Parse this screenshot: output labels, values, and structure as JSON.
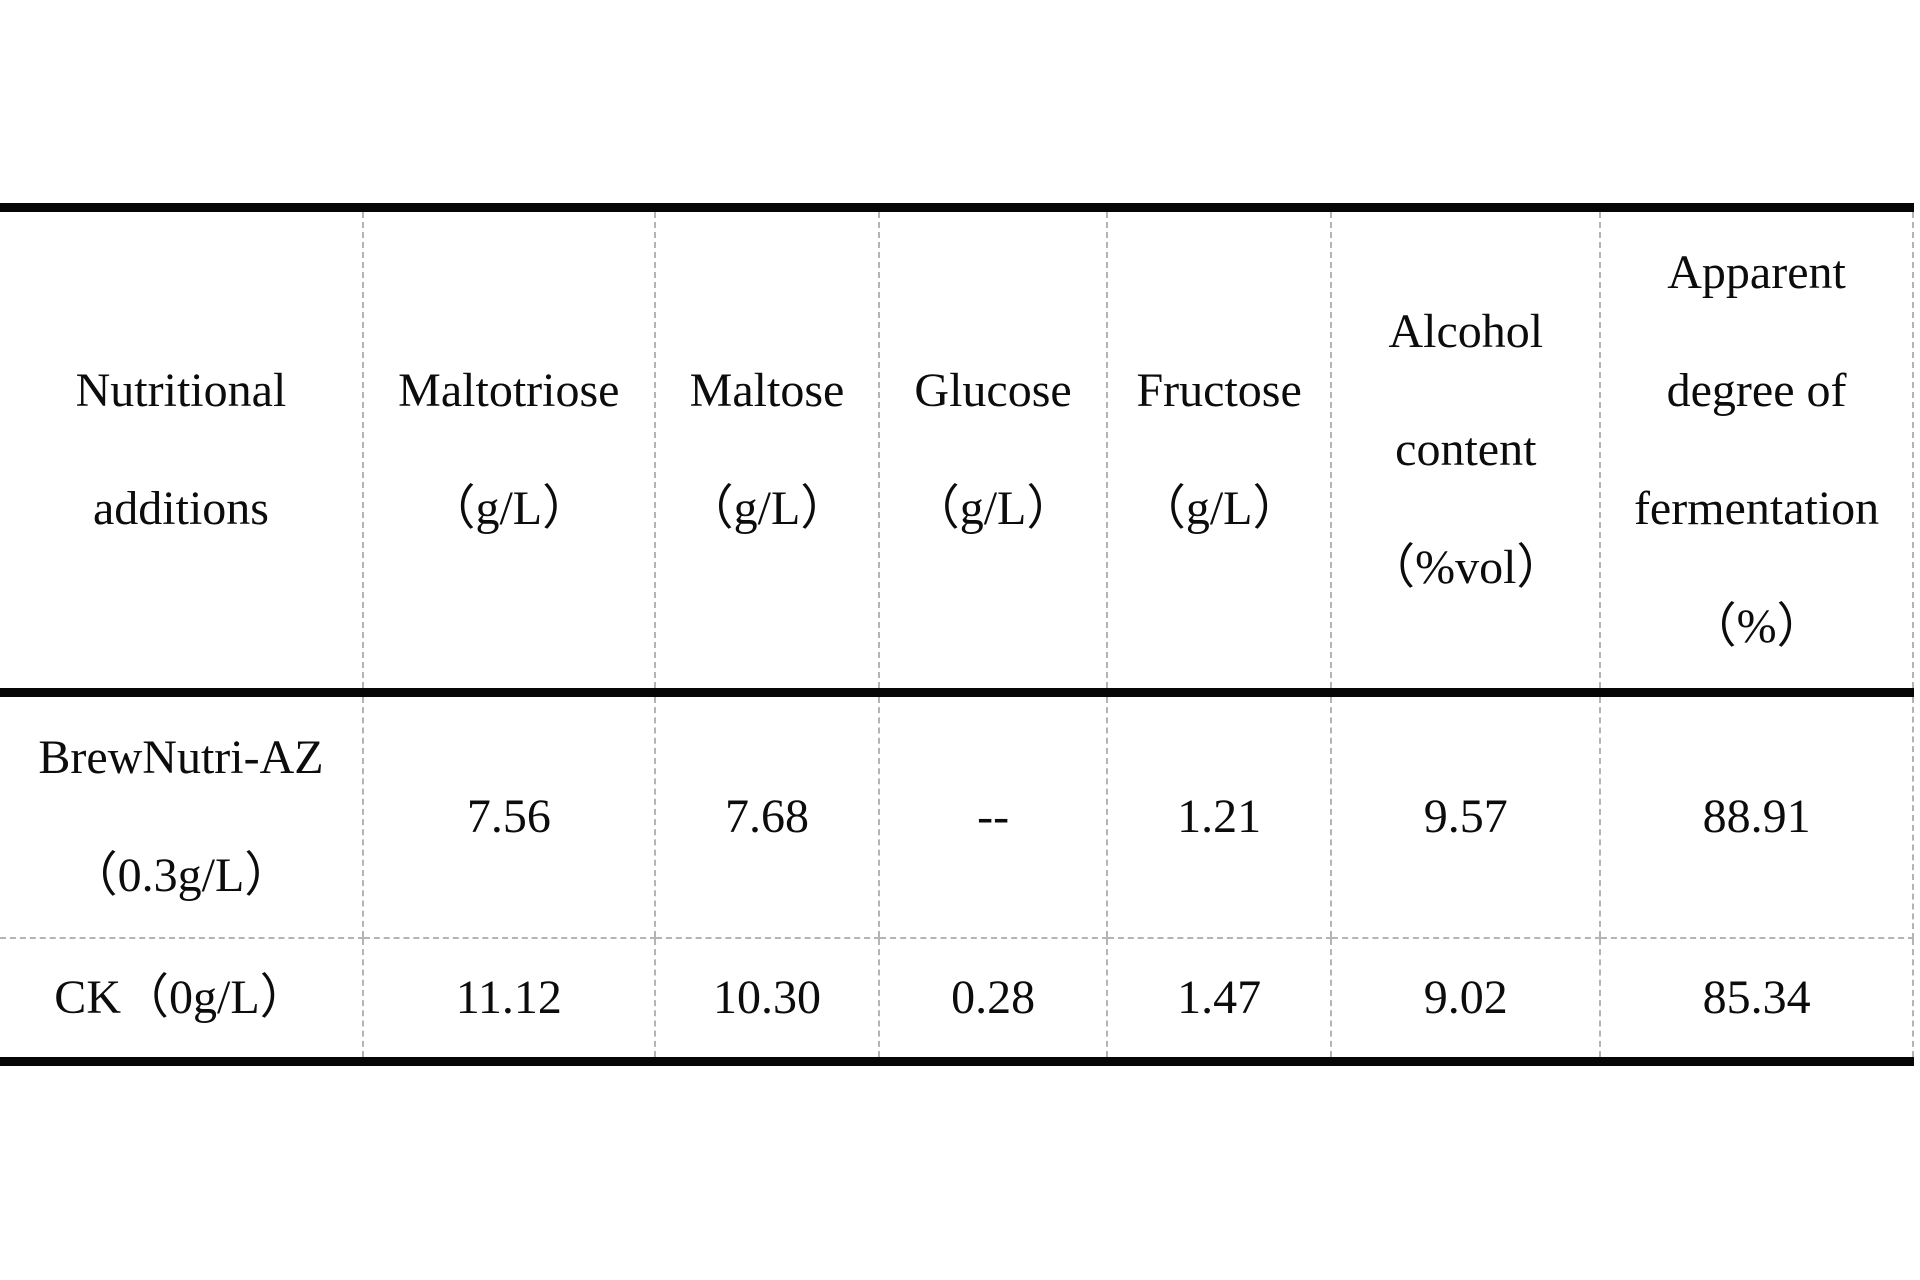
{
  "page": {
    "background": "#ffffff"
  },
  "table": {
    "style": {
      "rule_color": "#000000",
      "divider_color": "#b4b4b4",
      "text_color": "#0c0c0c"
    },
    "columns": [
      {
        "name": "nutritional-additions",
        "lines": [
          "Nutritional",
          "additions"
        ]
      },
      {
        "name": "maltotriose",
        "lines": [
          "Maltotriose",
          "（g/L）"
        ]
      },
      {
        "name": "maltose",
        "lines": [
          "Maltose",
          "（g/L）"
        ]
      },
      {
        "name": "glucose",
        "lines": [
          "Glucose",
          "（g/L）"
        ]
      },
      {
        "name": "fructose",
        "lines": [
          "Fructose",
          "（g/L）"
        ]
      },
      {
        "name": "alcohol-content",
        "lines": [
          "Alcohol",
          "content",
          "（%vol）"
        ]
      },
      {
        "name": "apparent-degree-of-fermentation",
        "lines": [
          "Apparent",
          "degree of",
          "fermentation",
          "（%）"
        ]
      }
    ],
    "rows": [
      {
        "label_lines": [
          "BrewNutri-AZ",
          "（0.3g/L）"
        ],
        "values": [
          "7.56",
          "7.68",
          "--",
          "1.21",
          "9.57",
          "88.91"
        ]
      },
      {
        "label_lines": [
          "CK（0g/L）"
        ],
        "values": [
          "11.12",
          "10.30",
          "0.28",
          "1.47",
          "9.02",
          "85.34"
        ]
      }
    ]
  }
}
